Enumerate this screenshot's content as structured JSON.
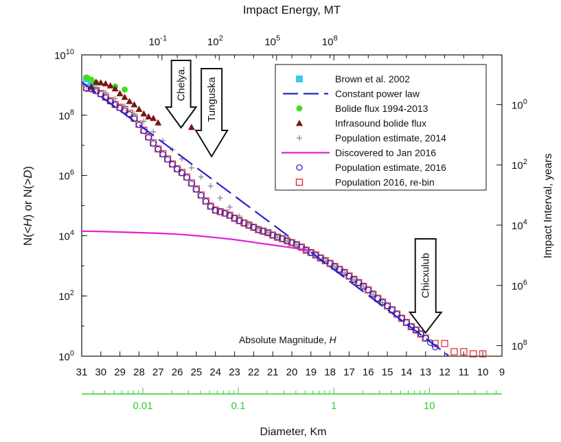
{
  "chart_data": {
    "type": "scatter",
    "title": "",
    "top_axis": {
      "label": "Impact Energy, MT",
      "ticks": [
        {
          "base": "10",
          "exp": "-1"
        },
        {
          "base": "10",
          "exp": "2"
        },
        {
          "base": "10",
          "exp": "5"
        },
        {
          "base": "10",
          "exp": "8"
        }
      ],
      "tick_H": [
        26.8,
        23.8,
        20.8,
        17.8
      ]
    },
    "left_axis": {
      "label_parts": [
        "N(<",
        "H",
        ")   or   N(>",
        "D",
        ")"
      ],
      "scale": "log",
      "ylim": [
        1,
        10000000000
      ],
      "ticks": [
        {
          "base": "10",
          "exp": "10",
          "log": 10
        },
        {
          "base": "10",
          "exp": "8",
          "log": 8
        },
        {
          "base": "10",
          "exp": "6",
          "log": 6
        },
        {
          "base": "10",
          "exp": "4",
          "log": 4
        },
        {
          "base": "10",
          "exp": "2",
          "log": 2
        },
        {
          "base": "10",
          "exp": "0",
          "log": 0
        }
      ]
    },
    "right_axis": {
      "label": "Impact Interval, years",
      "ticks": [
        {
          "base": "10",
          "exp": "0",
          "log": 8.35
        },
        {
          "base": "10",
          "exp": "2",
          "log": 6.35
        },
        {
          "base": "10",
          "exp": "4",
          "log": 4.35
        },
        {
          "base": "10",
          "exp": "6",
          "log": 2.35
        },
        {
          "base": "10",
          "exp": "8",
          "log": 0.35
        }
      ]
    },
    "bottom_axis": {
      "label": "Absolute Magnitude, ",
      "label_italic": "H",
      "xlim": [
        31,
        9
      ],
      "ticks": [
        "31",
        "30",
        "29",
        "28",
        "27",
        "26",
        "25",
        "24",
        "23",
        "22",
        "21",
        "20",
        "19",
        "18",
        "17",
        "16",
        "15",
        "14",
        "13",
        "12",
        "11",
        "10",
        "9"
      ]
    },
    "diameter_axis": {
      "label": "Diameter, Km",
      "color": "#33cc33",
      "ticks": [
        {
          "label": "0.01",
          "H": 27.8
        },
        {
          "label": "0.1",
          "H": 22.8
        },
        {
          "label": "1",
          "H": 17.8
        },
        {
          "label": "10",
          "H": 12.8
        }
      ]
    },
    "annotations": [
      {
        "label": "Chelya.",
        "H": 25.8
      },
      {
        "label": "Tunguska",
        "H": 24.2
      },
      {
        "label": "Chicxulub",
        "H": 13.0
      }
    ],
    "legend": {
      "position": "top-right",
      "entries": [
        {
          "name": "Brown et al. 2002",
          "marker": "square-filled",
          "color": "#33ccee"
        },
        {
          "name": "Constant power law",
          "marker": "dash-line",
          "color": "#2222cc"
        },
        {
          "name": "Bolide flux 1994-2013",
          "marker": "circle-filled",
          "color": "#44dd22"
        },
        {
          "name": "Infrasound bolide flux",
          "marker": "triangle-filled",
          "color": "#7a1414"
        },
        {
          "name": "Population estimate, 2014",
          "marker": "plus",
          "color": "#888888"
        },
        {
          "name": "Discovered to Jan 2016",
          "marker": "line",
          "color": "#e020d8"
        },
        {
          "name": "Population estimate, 2016",
          "marker": "circle-open",
          "color": "#2222cc"
        },
        {
          "name": "Population 2016, re-bin",
          "marker": "square-open",
          "color": "#dd2222"
        }
      ]
    },
    "series": [
      {
        "name": "Population 2016, re-bin",
        "H": [
          30.75,
          30.5,
          30.25,
          30,
          29.75,
          29.5,
          29.25,
          29,
          28.75,
          28.5,
          28.25,
          28,
          27.75,
          27.5,
          27.25,
          27,
          26.75,
          26.5,
          26.25,
          26,
          25.75,
          25.5,
          25.25,
          25,
          24.75,
          24.5,
          24.25,
          24,
          23.75,
          23.5,
          23.25,
          23,
          22.75,
          22.5,
          22.25,
          22,
          21.75,
          21.5,
          21.25,
          21,
          20.75,
          20.5,
          20.25,
          20,
          19.75,
          19.5,
          19.25,
          19,
          18.75,
          18.5,
          18.25,
          18,
          17.75,
          17.5,
          17.25,
          17,
          16.75,
          16.5,
          16.25,
          16,
          15.75,
          15.5,
          15.25,
          15,
          14.75,
          14.5,
          14.25,
          14,
          13.75,
          13.5,
          13.25,
          13,
          12.5,
          12,
          11.5,
          11,
          10.5,
          10
        ],
        "log_N": [
          8.92,
          8.9,
          8.82,
          8.72,
          8.6,
          8.48,
          8.36,
          8.26,
          8.18,
          8.06,
          7.9,
          7.7,
          7.5,
          7.28,
          7.08,
          6.88,
          6.72,
          6.55,
          6.38,
          6.22,
          6.1,
          5.95,
          5.75,
          5.55,
          5.35,
          5.15,
          4.98,
          4.85,
          4.8,
          4.75,
          4.68,
          4.58,
          4.5,
          4.42,
          4.35,
          4.28,
          4.2,
          4.15,
          4.1,
          4.02,
          3.95,
          3.9,
          3.83,
          3.77,
          3.7,
          3.62,
          3.52,
          3.44,
          3.36,
          3.26,
          3.17,
          3.08,
          2.98,
          2.88,
          2.78,
          2.66,
          2.55,
          2.44,
          2.32,
          2.2,
          2.06,
          1.92,
          1.8,
          1.67,
          1.54,
          1.4,
          1.26,
          1.12,
          0.98,
          0.87,
          0.74,
          0.6,
          0.42,
          0.42,
          0.15,
          0.15,
          0.08,
          0.08
        ]
      },
      {
        "name": "Population estimate, 2016",
        "H": [
          30.75,
          30.5,
          30.25,
          30,
          29.75,
          29.5,
          29.25,
          29,
          28.75,
          28.5,
          28.25,
          28,
          27.75,
          27.5,
          27.25,
          27,
          26.75,
          26.5,
          26.25,
          26,
          25.75,
          25.5,
          25.25,
          25,
          24.75,
          24.5,
          24.25,
          24,
          23.75,
          23.5,
          23.25,
          23,
          22.75,
          22.5,
          22.25,
          22,
          21.75,
          21.5,
          21.25,
          21,
          20.75,
          20.5,
          20.25,
          20,
          19.75,
          19.5,
          19.25,
          19,
          18.75,
          18.5,
          18.25,
          18,
          17.75,
          17.5,
          17.25,
          17,
          16.75,
          16.5,
          16.25,
          16,
          15.75,
          15.5,
          15.25,
          15,
          14.75,
          14.5,
          14.25,
          14,
          13.75,
          13.5,
          13.25,
          13,
          12.75,
          12.5
        ],
        "log_N": [
          8.88,
          8.86,
          8.8,
          8.7,
          8.58,
          8.46,
          8.34,
          8.24,
          8.15,
          8.03,
          7.88,
          7.68,
          7.48,
          7.26,
          7.06,
          6.87,
          6.7,
          6.53,
          6.37,
          6.21,
          6.08,
          5.93,
          5.73,
          5.54,
          5.34,
          5.14,
          4.97,
          4.84,
          4.79,
          4.74,
          4.67,
          4.58,
          4.5,
          4.42,
          4.35,
          4.28,
          4.2,
          4.15,
          4.1,
          4.02,
          3.95,
          3.9,
          3.83,
          3.77,
          3.7,
          3.62,
          3.52,
          3.44,
          3.36,
          3.26,
          3.17,
          3.08,
          2.98,
          2.88,
          2.78,
          2.66,
          2.55,
          2.44,
          2.32,
          2.2,
          2.06,
          1.92,
          1.8,
          1.67,
          1.54,
          1.4,
          1.26,
          1.12,
          0.98,
          0.87,
          0.74,
          0.6,
          0.45,
          0.3
        ]
      },
      {
        "name": "Population estimate, 2014",
        "H": [
          30.75,
          30.25,
          29.75,
          29.25,
          28.75,
          28.25,
          27.75,
          27.25,
          26.75,
          26.25,
          25.75,
          25.25,
          24.75,
          24.25,
          23.75,
          23.25,
          22.75,
          22.25,
          21.75,
          21.25,
          20.75,
          20.25,
          19.75,
          19.25,
          18.75,
          18.25,
          17.75,
          17.25,
          16.75,
          16.25,
          15.75,
          15.25
        ],
        "log_N": [
          8.95,
          8.9,
          8.75,
          8.55,
          8.3,
          8.05,
          7.8,
          7.45,
          7.15,
          6.85,
          6.55,
          6.25,
          5.95,
          5.65,
          5.25,
          4.95,
          4.65,
          4.42,
          4.25,
          4.12,
          3.95,
          3.82,
          3.68,
          3.5,
          3.33,
          3.15,
          2.96,
          2.76,
          2.53,
          2.3,
          2.04,
          1.78
        ]
      },
      {
        "name": "Brown et al. 2002",
        "H": [
          30.75,
          30.5
        ],
        "log_N": [
          9.2,
          9.05
        ]
      },
      {
        "name": "Bolide flux 1994-2013",
        "H": [
          30.75,
          30.5,
          30.25,
          29.25,
          28.75,
          25.8
        ],
        "log_N": [
          9.25,
          9.18,
          9.08,
          8.95,
          8.85,
          7.7
        ]
      },
      {
        "name": "Infrasound bolide flux",
        "H": [
          30.5,
          30.25,
          30,
          29.75,
          29.5,
          29.25,
          29,
          28.75,
          28.5,
          28.25,
          28,
          27.75,
          27.5,
          27.25,
          27,
          25.25
        ],
        "log_N": [
          8.95,
          9.1,
          9.08,
          9.05,
          8.98,
          8.88,
          8.72,
          8.6,
          8.46,
          8.35,
          8.2,
          8.05,
          7.95,
          7.9,
          7.75,
          7.6
        ]
      },
      {
        "name": "Constant power law",
        "H": [
          31,
          20
        ],
        "log_N": [
          9.1,
          3.9
        ]
      },
      {
        "name": "Constant power law",
        "H": [
          19,
          11.8
        ],
        "log_N": [
          3.45,
          -0.05
        ]
      },
      {
        "name": "Discovered to Jan 2016",
        "H": [
          31,
          30,
          29,
          28,
          27,
          26,
          25,
          24,
          23,
          22,
          21,
          20,
          19
        ],
        "log_N": [
          4.15,
          4.14,
          4.12,
          4.1,
          4.08,
          4.05,
          4.0,
          3.94,
          3.87,
          3.78,
          3.69,
          3.6,
          3.5
        ]
      }
    ],
    "colors": {
      "dash": "#2222cc",
      "discovered": "#e020d8",
      "rebin": "#dd2222",
      "pop2016": "#2222cc",
      "pop2014": "#888888",
      "brown": "#33ccee",
      "bolide": "#44dd22",
      "infrasound": "#7a1414",
      "diameter": "#33cc33"
    }
  }
}
